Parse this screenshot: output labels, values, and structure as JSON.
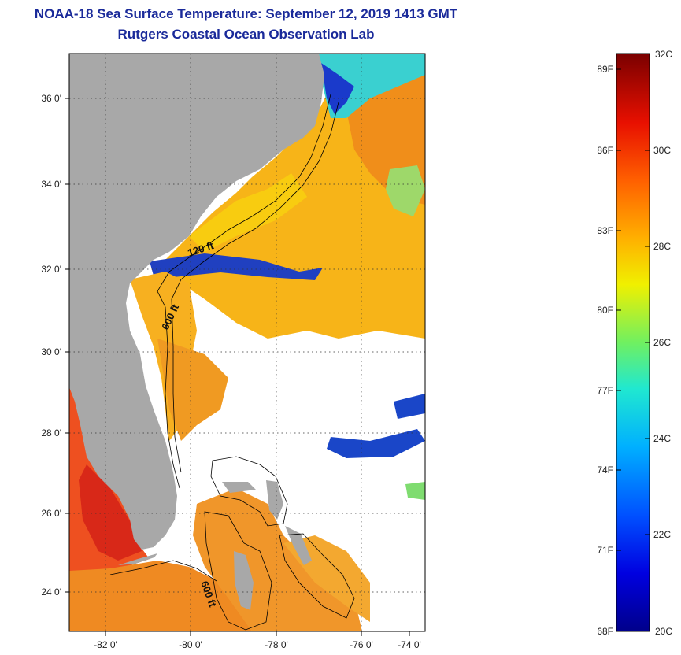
{
  "title": "NOAA-18 Sea Surface Temperature:  September 12, 2019 1413 GMT",
  "subtitle": "Rutgers Coastal Ocean Observation Lab",
  "map": {
    "lat_ticks": [
      "36 0'",
      "34 0'",
      "32 0'",
      "30 0'",
      "28 0'",
      "26 0'",
      "24 0'"
    ],
    "lon_ticks": [
      "-82 0'",
      "-80 0'",
      "-78 0'",
      "-76 0'",
      "-74 0'"
    ],
    "contour_labels": [
      "120 ft",
      "600 ft",
      "600 ft"
    ],
    "colors": {
      "land": "#a8a8a8",
      "no_data": "#ffffff",
      "contour": "#000000"
    }
  },
  "colorbar": {
    "fahrenheit": [
      "89F",
      "86F",
      "83F",
      "80F",
      "77F",
      "74F",
      "71F",
      "68F"
    ],
    "celsius": [
      "32C",
      "30C",
      "28C",
      "26C",
      "24C",
      "22C",
      "20C"
    ],
    "min_c": 20,
    "max_c": 32
  }
}
